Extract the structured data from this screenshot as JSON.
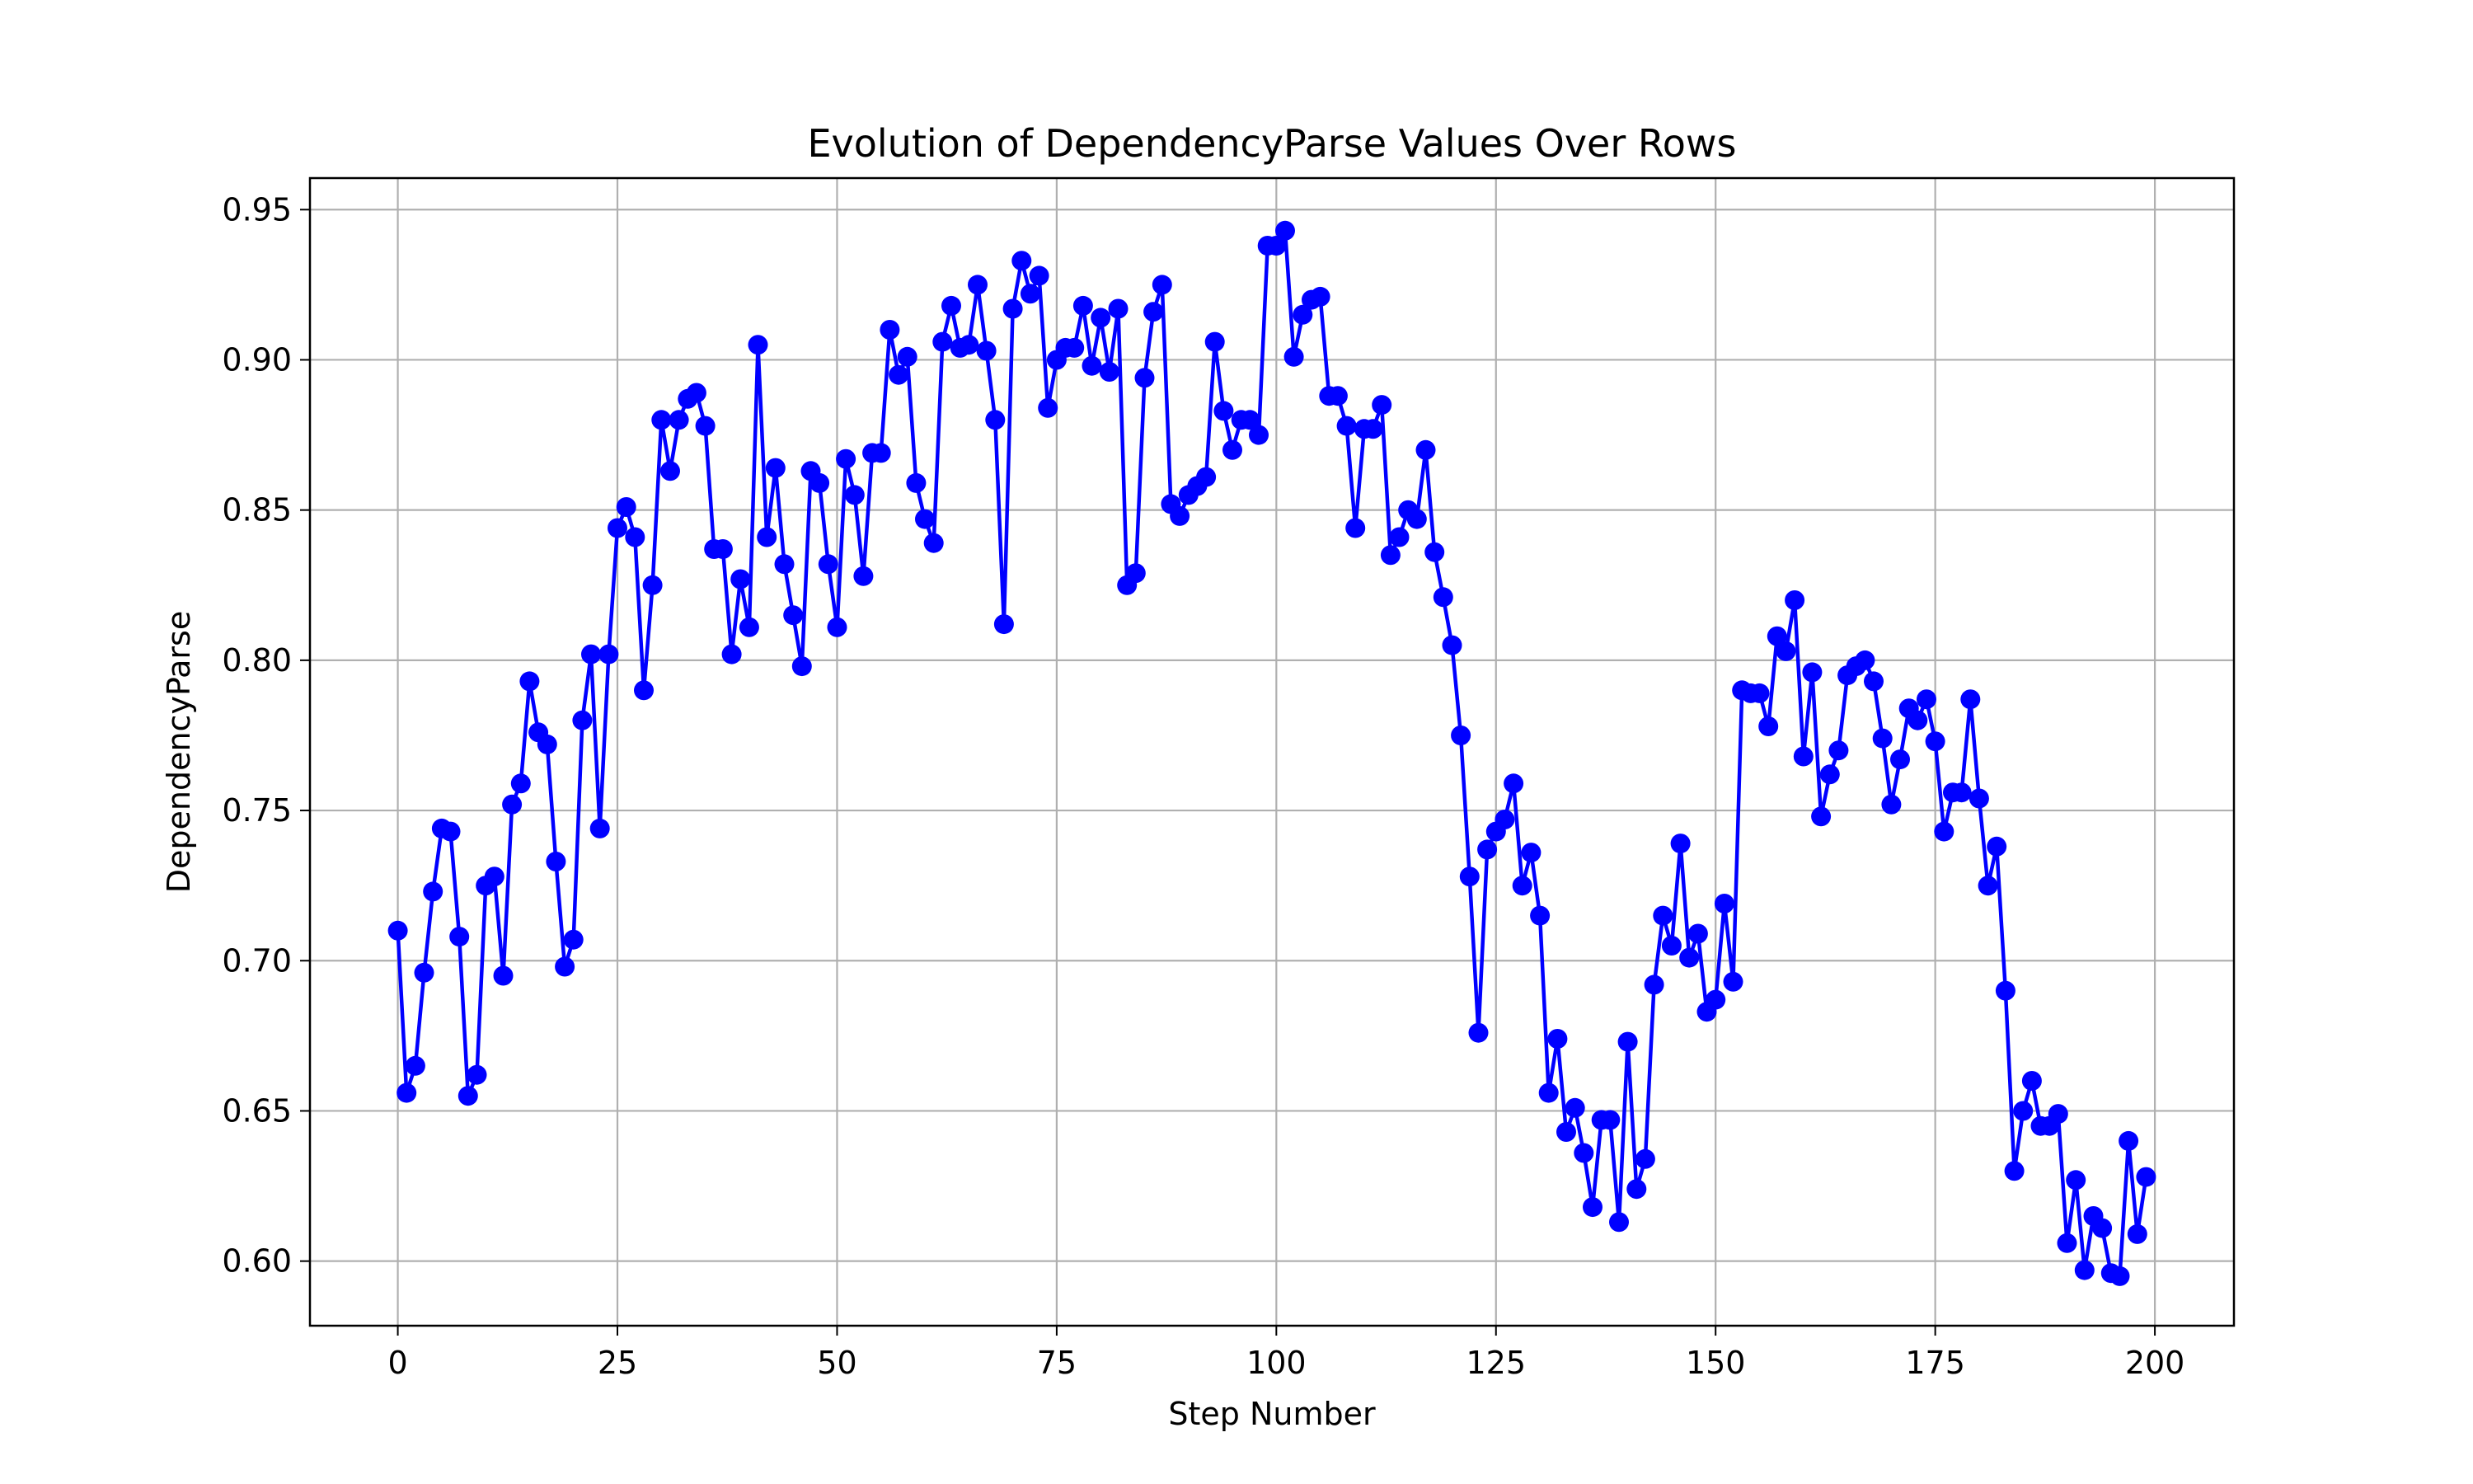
{
  "chart_data": {
    "type": "line",
    "title": "Evolution of DependencyParse Values Over Rows",
    "xlabel": "Step Number",
    "ylabel": "DependencyParse",
    "xlim": [
      -10,
      209
    ],
    "ylim": [
      0.5785,
      0.9605
    ],
    "xticks": [
      0,
      25,
      50,
      75,
      100,
      125,
      150,
      175,
      200
    ],
    "yticks": [
      0.6,
      0.65,
      0.7,
      0.75,
      0.8,
      0.85,
      0.9,
      0.95
    ],
    "xtick_labels": [
      "0",
      "25",
      "50",
      "75",
      "100",
      "125",
      "150",
      "175",
      "200"
    ],
    "ytick_labels": [
      "0.60",
      "0.65",
      "0.70",
      "0.75",
      "0.80",
      "0.85",
      "0.90",
      "0.95"
    ],
    "grid": true,
    "marker": "circle",
    "colors": {
      "series": "#0000ff",
      "grid": "#b0b0b0",
      "axes": "#000000"
    },
    "series": [
      {
        "x": [
          0,
          1,
          2,
          3,
          4,
          5,
          6,
          7,
          8,
          9,
          10,
          11,
          12,
          13,
          14,
          15,
          16,
          17,
          18,
          19,
          20,
          21,
          22,
          23,
          24,
          25,
          26,
          27,
          28,
          29,
          30,
          31,
          32,
          33,
          34,
          35,
          36,
          37,
          38,
          39,
          40,
          41,
          42,
          43,
          44,
          45,
          46,
          47,
          48,
          49,
          50,
          51,
          52,
          53,
          54,
          55,
          56,
          57,
          58,
          59,
          60,
          61,
          62,
          63,
          64,
          65,
          66,
          67,
          68,
          69,
          70,
          71,
          72,
          73,
          74,
          75,
          76,
          77,
          78,
          79,
          80,
          81,
          82,
          83,
          84,
          85,
          86,
          87,
          88,
          89,
          90,
          91,
          92,
          93,
          94,
          95,
          96,
          97,
          98,
          99,
          100,
          101,
          102,
          103,
          104,
          105,
          106,
          107,
          108,
          109,
          110,
          111,
          112,
          113,
          114,
          115,
          116,
          117,
          118,
          119,
          120,
          121,
          122,
          123,
          124,
          125,
          126,
          127,
          128,
          129,
          130,
          131,
          132,
          133,
          134,
          135,
          136,
          137,
          138,
          139,
          140,
          141,
          142,
          143,
          144,
          145,
          146,
          147,
          148,
          149,
          150,
          151,
          152,
          153,
          154,
          155,
          156,
          157,
          158,
          159,
          160,
          161,
          162,
          163,
          164,
          165,
          166,
          167,
          168,
          169,
          170,
          171,
          172,
          173,
          174,
          175,
          176,
          177,
          178,
          179,
          180,
          181,
          182,
          183,
          184,
          185,
          186,
          187,
          188,
          189,
          190,
          191,
          192,
          193,
          194,
          195,
          196,
          197,
          198,
          199
        ],
        "values": [
          0.71,
          0.656,
          0.665,
          0.696,
          0.723,
          0.744,
          0.743,
          0.708,
          0.655,
          0.662,
          0.725,
          0.728,
          0.695,
          0.752,
          0.759,
          0.793,
          0.776,
          0.772,
          0.733,
          0.698,
          0.707,
          0.78,
          0.802,
          0.744,
          0.802,
          0.844,
          0.851,
          0.841,
          0.79,
          0.825,
          0.88,
          0.863,
          0.88,
          0.887,
          0.889,
          0.878,
          0.837,
          0.837,
          0.802,
          0.827,
          0.811,
          0.905,
          0.841,
          0.864,
          0.832,
          0.815,
          0.798,
          0.863,
          0.859,
          0.832,
          0.811,
          0.867,
          0.855,
          0.828,
          0.869,
          0.869,
          0.91,
          0.895,
          0.901,
          0.859,
          0.847,
          0.839,
          0.906,
          0.918,
          0.904,
          0.905,
          0.925,
          0.903,
          0.88,
          0.812,
          0.917,
          0.933,
          0.922,
          0.928,
          0.884,
          0.9,
          0.904,
          0.904,
          0.918,
          0.898,
          0.914,
          0.896,
          0.917,
          0.825,
          0.829,
          0.894,
          0.916,
          0.925,
          0.852,
          0.848,
          0.855,
          0.858,
          0.861,
          0.906,
          0.883,
          0.87,
          0.88,
          0.88,
          0.875,
          0.938,
          0.938,
          0.943,
          0.901,
          0.915,
          0.92,
          0.921,
          0.888,
          0.888,
          0.878,
          0.844,
          0.877,
          0.877,
          0.885,
          0.835,
          0.841,
          0.85,
          0.847,
          0.87,
          0.836,
          0.821,
          0.805,
          0.775,
          0.728,
          0.676,
          0.737,
          0.743,
          0.747,
          0.759,
          0.725,
          0.736,
          0.715,
          0.656,
          0.674,
          0.643,
          0.651,
          0.636,
          0.618,
          0.647,
          0.647,
          0.613,
          0.673,
          0.624,
          0.634,
          0.692,
          0.715,
          0.705,
          0.739,
          0.701,
          0.709,
          0.683,
          0.687,
          0.719,
          0.693,
          0.79,
          0.789,
          0.789,
          0.778,
          0.808,
          0.803,
          0.82,
          0.768,
          0.796,
          0.748,
          0.762,
          0.77,
          0.795,
          0.798,
          0.8,
          0.793,
          0.774,
          0.752,
          0.767,
          0.784,
          0.78,
          0.787,
          0.773,
          0.743,
          0.756,
          0.756,
          0.787,
          0.754,
          0.725,
          0.738,
          0.69,
          0.63,
          0.65,
          0.66,
          0.645,
          0.645,
          0.649,
          0.606,
          0.627,
          0.597,
          0.615,
          0.611,
          0.596,
          0.595,
          0.64,
          0.609,
          0.628
        ]
      }
    ]
  }
}
